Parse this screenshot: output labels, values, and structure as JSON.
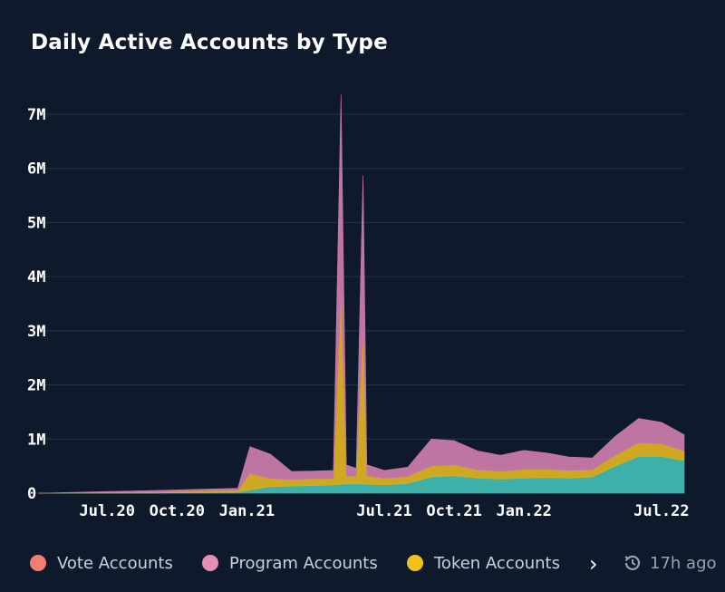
{
  "title": "Daily Active Accounts by Type",
  "colors": {
    "background": "#0e1a2b",
    "grid": "#1f3550",
    "vote": "#3fb8b0",
    "token": "#d9b020",
    "program": "#c97aa8",
    "vote_legend": "#f27e72",
    "program_legend": "#e68fb4",
    "token_legend": "#f2c21b"
  },
  "legend": {
    "items": [
      {
        "label": "Vote Accounts",
        "color": "#f27e72"
      },
      {
        "label": "Program Accounts",
        "color": "#e68fb4"
      },
      {
        "label": "Token Accounts",
        "color": "#f2c21b"
      }
    ],
    "next_icon": "chevron-right-icon",
    "updated_icon": "history-clock-icon",
    "updated_text": "17h ago"
  },
  "chart_data": {
    "type": "area",
    "title": "Daily Active Accounts by Type",
    "ylim": [
      0,
      7000000
    ],
    "yticks": [
      {
        "value": 0,
        "label": "0"
      },
      {
        "value": 1000000,
        "label": "1M"
      },
      {
        "value": 2000000,
        "label": "2M"
      },
      {
        "value": 3000000,
        "label": "3M"
      },
      {
        "value": 4000000,
        "label": "4M"
      },
      {
        "value": 5000000,
        "label": "5M"
      },
      {
        "value": 6000000,
        "label": "6M"
      },
      {
        "value": 7000000,
        "label": "7M"
      }
    ],
    "xlim": [
      "2020-04-01",
      "2022-07-31"
    ],
    "xticks": [
      {
        "date": "2020-07-01",
        "label": "Jul.20"
      },
      {
        "date": "2020-10-01",
        "label": "Oct.20"
      },
      {
        "date": "2021-01-01",
        "label": "Jan.21"
      },
      {
        "date": "2021-07-01",
        "label": "Jul.21"
      },
      {
        "date": "2021-10-01",
        "label": "Oct.21"
      },
      {
        "date": "2022-01-01",
        "label": "Jan.22"
      },
      {
        "date": "2022-07-01",
        "label": "Jul.22"
      }
    ],
    "grid": true,
    "legend_position": "bottom",
    "stacking": "stacked",
    "series_order": [
      "Vote Accounts",
      "Token Accounts",
      "Program Accounts"
    ],
    "series": [
      {
        "name": "Vote Accounts",
        "color": "#3fb8b0",
        "points": [
          [
            "2020-04-01",
            0
          ],
          [
            "2020-09-01",
            0
          ],
          [
            "2020-12-20",
            20000
          ],
          [
            "2021-01-05",
            60000
          ],
          [
            "2021-02-01",
            120000
          ],
          [
            "2021-03-01",
            130000
          ],
          [
            "2021-04-01",
            140000
          ],
          [
            "2021-04-25",
            150000
          ],
          [
            "2021-05-10",
            170000
          ],
          [
            "2021-06-01",
            170000
          ],
          [
            "2021-07-01",
            150000
          ],
          [
            "2021-08-01",
            180000
          ],
          [
            "2021-09-01",
            300000
          ],
          [
            "2021-10-01",
            320000
          ],
          [
            "2021-11-01",
            280000
          ],
          [
            "2021-12-01",
            260000
          ],
          [
            "2022-01-01",
            280000
          ],
          [
            "2022-02-01",
            290000
          ],
          [
            "2022-03-01",
            280000
          ],
          [
            "2022-04-01",
            300000
          ],
          [
            "2022-05-01",
            500000
          ],
          [
            "2022-06-01",
            680000
          ],
          [
            "2022-07-01",
            680000
          ],
          [
            "2022-07-31",
            600000
          ]
        ]
      },
      {
        "name": "Token Accounts",
        "color": "#d9b020",
        "points": [
          [
            "2020-04-01",
            0
          ],
          [
            "2020-09-01",
            20000
          ],
          [
            "2020-12-20",
            30000
          ],
          [
            "2021-01-05",
            300000
          ],
          [
            "2021-02-01",
            150000
          ],
          [
            "2021-03-01",
            120000
          ],
          [
            "2021-04-01",
            130000
          ],
          [
            "2021-04-25",
            120000
          ],
          [
            "2021-05-05",
            3500000
          ],
          [
            "2021-05-12",
            150000
          ],
          [
            "2021-05-25",
            140000
          ],
          [
            "2021-06-03",
            2800000
          ],
          [
            "2021-06-08",
            160000
          ],
          [
            "2021-07-01",
            120000
          ],
          [
            "2021-08-01",
            130000
          ],
          [
            "2021-09-01",
            200000
          ],
          [
            "2021-10-01",
            200000
          ],
          [
            "2021-11-01",
            150000
          ],
          [
            "2021-12-01",
            140000
          ],
          [
            "2022-01-01",
            160000
          ],
          [
            "2022-02-01",
            150000
          ],
          [
            "2022-03-01",
            140000
          ],
          [
            "2022-04-01",
            130000
          ],
          [
            "2022-05-01",
            200000
          ],
          [
            "2022-06-01",
            250000
          ],
          [
            "2022-07-01",
            230000
          ],
          [
            "2022-07-31",
            180000
          ]
        ]
      },
      {
        "name": "Program Accounts",
        "color": "#c97aa8",
        "points": [
          [
            "2020-04-01",
            0
          ],
          [
            "2020-09-01",
            30000
          ],
          [
            "2020-12-20",
            40000
          ],
          [
            "2021-01-05",
            500000
          ],
          [
            "2021-02-01",
            450000
          ],
          [
            "2021-03-01",
            150000
          ],
          [
            "2021-04-01",
            140000
          ],
          [
            "2021-04-25",
            150000
          ],
          [
            "2021-05-05",
            3700000
          ],
          [
            "2021-05-12",
            200000
          ],
          [
            "2021-05-25",
            150000
          ],
          [
            "2021-06-03",
            2900000
          ],
          [
            "2021-06-08",
            200000
          ],
          [
            "2021-07-01",
            150000
          ],
          [
            "2021-08-01",
            170000
          ],
          [
            "2021-09-01",
            500000
          ],
          [
            "2021-10-01",
            450000
          ],
          [
            "2021-11-01",
            350000
          ],
          [
            "2021-12-01",
            300000
          ],
          [
            "2022-01-01",
            350000
          ],
          [
            "2022-02-01",
            300000
          ],
          [
            "2022-03-01",
            250000
          ],
          [
            "2022-04-01",
            220000
          ],
          [
            "2022-05-01",
            350000
          ],
          [
            "2022-06-01",
            450000
          ],
          [
            "2022-07-01",
            400000
          ],
          [
            "2022-07-31",
            300000
          ]
        ]
      }
    ]
  }
}
